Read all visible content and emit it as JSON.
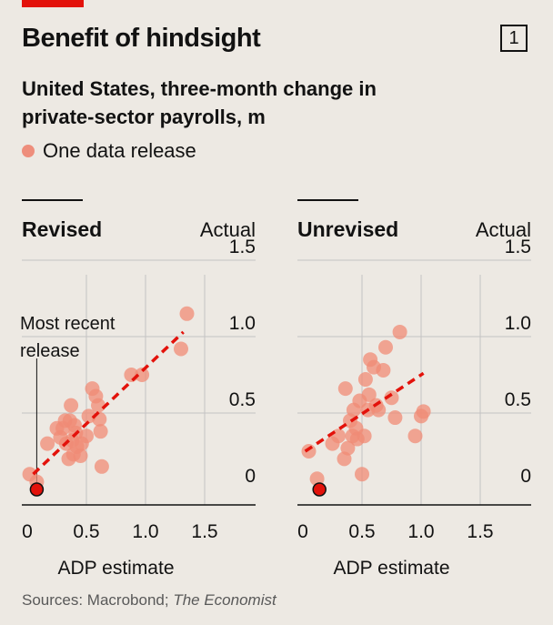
{
  "header": {
    "title": "Benefit of hindsight",
    "chart_number": "1",
    "subtitle": "United States, three-month change in private-sector payrolls, m",
    "legend_label": "One data release",
    "source_prefix": "Sources: Macrobond; ",
    "source_italic": "The Economist"
  },
  "colors": {
    "dot": "#f08b75",
    "highlight": "#e3120b",
    "trend": "#e3120b",
    "grid": "#c3c3c3",
    "background": "#ede9e3"
  },
  "chart_data": [
    {
      "type": "scatter",
      "title": "Revised",
      "ylabel": "Actual",
      "xlabel": "ADP estimate",
      "xlim": [
        0,
        1.5
      ],
      "ylim": [
        0,
        1.5
      ],
      "xticks": [
        "0",
        "0.5",
        "1.0",
        "1.5"
      ],
      "yticks": [
        "0",
        "0.5",
        "1.0",
        "1.5"
      ],
      "annotation": "Most recent release",
      "highlight": {
        "x": 0.08,
        "y": 0.0
      },
      "trendline": [
        [
          0.05,
          0.1
        ],
        [
          1.32,
          1.03
        ]
      ],
      "points": [
        [
          0.02,
          0.1
        ],
        [
          0.08,
          0.05
        ],
        [
          0.17,
          0.3
        ],
        [
          0.25,
          0.4
        ],
        [
          0.28,
          0.34
        ],
        [
          0.3,
          0.4
        ],
        [
          0.32,
          0.45
        ],
        [
          0.33,
          0.3
        ],
        [
          0.35,
          0.2
        ],
        [
          0.36,
          0.45
        ],
        [
          0.37,
          0.55
        ],
        [
          0.38,
          0.32
        ],
        [
          0.39,
          0.23
        ],
        [
          0.4,
          0.42
        ],
        [
          0.41,
          0.37
        ],
        [
          0.42,
          0.28
        ],
        [
          0.45,
          0.22
        ],
        [
          0.46,
          0.3
        ],
        [
          0.5,
          0.35
        ],
        [
          0.52,
          0.48
        ],
        [
          0.55,
          0.66
        ],
        [
          0.58,
          0.61
        ],
        [
          0.6,
          0.55
        ],
        [
          0.61,
          0.46
        ],
        [
          0.62,
          0.38
        ],
        [
          0.63,
          0.15
        ],
        [
          0.88,
          0.75
        ],
        [
          0.97,
          0.75
        ],
        [
          1.3,
          0.92
        ],
        [
          1.35,
          1.15
        ]
      ]
    },
    {
      "type": "scatter",
      "title": "Unrevised",
      "ylabel": "Actual",
      "xlabel": "ADP estimate",
      "xlim": [
        0,
        1.5
      ],
      "ylim": [
        0,
        1.5
      ],
      "xticks": [
        "0",
        "0.5",
        "1.0",
        "1.5"
      ],
      "yticks": [
        "0",
        "0.5",
        "1.0",
        "1.5"
      ],
      "highlight": {
        "x": 0.14,
        "y": 0.0
      },
      "trendline": [
        [
          0.02,
          0.25
        ],
        [
          1.02,
          0.76
        ]
      ],
      "points": [
        [
          0.05,
          0.25
        ],
        [
          0.12,
          0.07
        ],
        [
          0.25,
          0.3
        ],
        [
          0.3,
          0.35
        ],
        [
          0.35,
          0.2
        ],
        [
          0.36,
          0.66
        ],
        [
          0.38,
          0.27
        ],
        [
          0.4,
          0.45
        ],
        [
          0.42,
          0.35
        ],
        [
          0.43,
          0.52
        ],
        [
          0.45,
          0.4
        ],
        [
          0.46,
          0.33
        ],
        [
          0.48,
          0.58
        ],
        [
          0.5,
          0.1
        ],
        [
          0.52,
          0.35
        ],
        [
          0.53,
          0.72
        ],
        [
          0.55,
          0.52
        ],
        [
          0.56,
          0.62
        ],
        [
          0.57,
          0.85
        ],
        [
          0.6,
          0.8
        ],
        [
          0.62,
          0.55
        ],
        [
          0.64,
          0.52
        ],
        [
          0.68,
          0.78
        ],
        [
          0.7,
          0.93
        ],
        [
          0.75,
          0.6
        ],
        [
          0.78,
          0.47
        ],
        [
          0.82,
          1.03
        ],
        [
          0.95,
          0.35
        ],
        [
          1.0,
          0.48
        ],
        [
          1.02,
          0.51
        ]
      ]
    }
  ]
}
